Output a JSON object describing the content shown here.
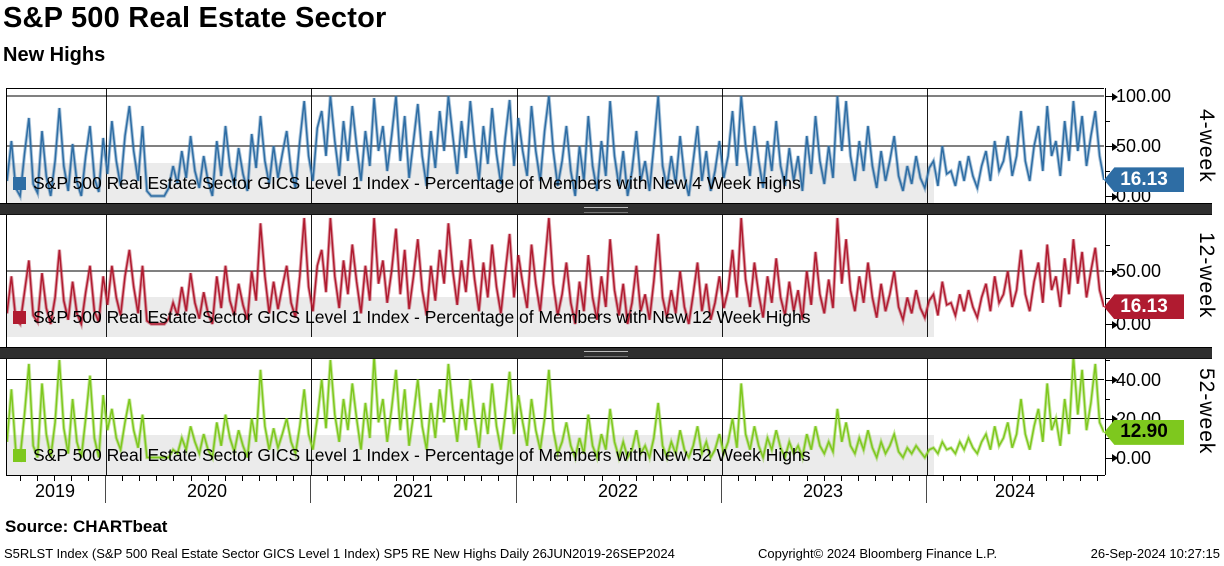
{
  "header": {
    "title": "S&P 500 Real Estate Sector",
    "subtitle": "New Highs"
  },
  "source_line": "Source: CHARTbeat",
  "footer": {
    "left": "S5RLST Index (S&P 500 Real Estate Sector GICS Level 1 Index) SP5 RE New Highs  Daily 26JUN2019-26SEP2024",
    "center": "Copyright© 2024 Bloomberg Finance L.P.",
    "right": "26-Sep-2024 10:27:15"
  },
  "x_axis": {
    "tick_labels": [
      "2019",
      "2020",
      "2021",
      "2022",
      "2023",
      "2024"
    ]
  },
  "chart_data": [
    {
      "type": "line",
      "name": "4-week",
      "color": "#2e6da4",
      "tag_text_color": "#ffffff",
      "legend": "S&P 500 Real Estate Sector GICS Level 1 Index - Percentage of Members with New 4 Week Highs",
      "last_value": "16.13",
      "ylim": [
        0,
        107
      ],
      "yticks": [
        {
          "value": 100,
          "label": "100.00"
        },
        {
          "value": 50,
          "label": "50.00"
        },
        {
          "value": 0,
          "label": "0.00"
        }
      ],
      "minor_ticks": [
        75,
        25
      ],
      "x_range": "26JUN2019-26SEP2024",
      "values": [
        15,
        55,
        8,
        0,
        42,
        78,
        12,
        3,
        65,
        20,
        0,
        35,
        88,
        30,
        5,
        52,
        14,
        0,
        40,
        70,
        18,
        4,
        58,
        22,
        75,
        35,
        10,
        60,
        90,
        45,
        15,
        70,
        5,
        0,
        0,
        0,
        0,
        8,
        30,
        12,
        45,
        18,
        60,
        25,
        8,
        40,
        15,
        0,
        55,
        20,
        70,
        30,
        10,
        48,
        22,
        5,
        62,
        28,
        80,
        35,
        12,
        50,
        18,
        42,
        65,
        25,
        8,
        55,
        95,
        40,
        15,
        68,
        85,
        40,
        100,
        55,
        20,
        75,
        35,
        90,
        50,
        15,
        65,
        30,
        98,
        45,
        70,
        25,
        60,
        100,
        35,
        80,
        18,
        55,
        92,
        40,
        10,
        65,
        28,
        85,
        45,
        100,
        60,
        22,
        75,
        38,
        95,
        50,
        15,
        70,
        32,
        88,
        42,
        12,
        58,
        96,
        30,
        78,
        45,
        20,
        90,
        45,
        15,
        65,
        100,
        45,
        10,
        35,
        70,
        25,
        0,
        50,
        15,
        80,
        30,
        5,
        55,
        20,
        95,
        40,
        10,
        45,
        0,
        25,
        65,
        15,
        35,
        5,
        50,
        100,
        30,
        8,
        40,
        12,
        60,
        20,
        0,
        35,
        70,
        15,
        45,
        5,
        25,
        55,
        18,
        40,
        85,
        30,
        100,
        50,
        20,
        70,
        35,
        8,
        55,
        25,
        75,
        30,
        10,
        48,
        15,
        40,
        5,
        60,
        22,
        80,
        35,
        12,
        50,
        18,
        100,
        45,
        95,
        40,
        15,
        55,
        25,
        70,
        30,
        8,
        45,
        15,
        35,
        60,
        20,
        5,
        30,
        12,
        40,
        18,
        8,
        28,
        35,
        10,
        50,
        22,
        25,
        10,
        35,
        15,
        40,
        20,
        8,
        30,
        45,
        15,
        55,
        25,
        35,
        60,
        20,
        40,
        85,
        35,
        15,
        50,
        70,
        25,
        90,
        40,
        55,
        20,
        75,
        35,
        95,
        45,
        80,
        30,
        60,
        85,
        40,
        16.13
      ]
    },
    {
      "type": "line",
      "name": "12-week",
      "color": "#b01b30",
      "tag_text_color": "#ffffff",
      "legend": "S&P 500 Real Estate Sector GICS Level 1 Index - Percentage of Members with New 12 Week Highs",
      "last_value": "16.13",
      "ylim": [
        0,
        105
      ],
      "yticks": [
        {
          "value": 50,
          "label": "50.00"
        },
        {
          "value": 0,
          "label": "0.00"
        }
      ],
      "minor_ticks": [
        75,
        25
      ],
      "x_range": "26JUN2019-26SEP2024",
      "values": [
        10,
        45,
        5,
        0,
        30,
        60,
        8,
        2,
        48,
        15,
        0,
        25,
        70,
        22,
        4,
        40,
        10,
        0,
        30,
        55,
        12,
        2,
        45,
        18,
        55,
        25,
        8,
        45,
        70,
        35,
        10,
        55,
        3,
        0,
        0,
        0,
        0,
        5,
        20,
        8,
        35,
        12,
        48,
        20,
        5,
        30,
        10,
        0,
        45,
        15,
        55,
        22,
        8,
        38,
        18,
        4,
        50,
        22,
        95,
        45,
        10,
        40,
        14,
        35,
        55,
        20,
        6,
        45,
        100,
        35,
        12,
        55,
        70,
        30,
        100,
        45,
        15,
        60,
        28,
        75,
        40,
        10,
        55,
        22,
        100,
        38,
        60,
        20,
        50,
        90,
        28,
        70,
        14,
        45,
        80,
        32,
        8,
        55,
        22,
        70,
        38,
        95,
        50,
        18,
        60,
        30,
        80,
        42,
        12,
        58,
        25,
        75,
        35,
        10,
        48,
        85,
        25,
        65,
        38,
        15,
        75,
        38,
        12,
        55,
        100,
        38,
        8,
        28,
        58,
        20,
        0,
        40,
        12,
        65,
        25,
        4,
        45,
        16,
        80,
        32,
        8,
        38,
        0,
        20,
        55,
        12,
        28,
        4,
        40,
        85,
        25,
        6,
        32,
        10,
        50,
        16,
        0,
        28,
        58,
        12,
        38,
        4,
        20,
        45,
        15,
        32,
        70,
        25,
        100,
        42,
        16,
        58,
        28,
        6,
        45,
        20,
        62,
        25,
        8,
        40,
        12,
        32,
        4,
        50,
        18,
        68,
        28,
        10,
        42,
        15,
        100,
        38,
        80,
        32,
        12,
        45,
        20,
        58,
        25,
        6,
        38,
        12,
        28,
        50,
        16,
        4,
        25,
        10,
        32,
        15,
        6,
        22,
        28,
        8,
        40,
        18,
        20,
        8,
        28,
        12,
        32,
        16,
        6,
        25,
        38,
        12,
        45,
        20,
        28,
        50,
        16,
        32,
        70,
        28,
        12,
        40,
        58,
        20,
        75,
        32,
        45,
        16,
        62,
        28,
        80,
        38,
        68,
        25,
        50,
        72,
        32,
        16.13
      ]
    },
    {
      "type": "line",
      "name": "52-week",
      "color": "#7ec81e",
      "tag_text_color": "#000000",
      "legend": "S&P 500 Real Estate Sector GICS Level 1 Index - Percentage of Members with New 52 Week Highs",
      "last_value": "12.90",
      "ylim": [
        0,
        57
      ],
      "yticks": [
        {
          "value": 40,
          "label": "40.00"
        },
        {
          "value": 20,
          "label": "20.00"
        },
        {
          "value": 0,
          "label": "0.00"
        }
      ],
      "minor_ticks": [
        50,
        30,
        10
      ],
      "x_range": "26JUN2019-26SEP2024",
      "values": [
        8,
        35,
        4,
        0,
        22,
        48,
        6,
        0,
        38,
        12,
        0,
        18,
        50,
        15,
        2,
        30,
        8,
        0,
        20,
        42,
        10,
        0,
        32,
        14,
        25,
        10,
        4,
        18,
        30,
        14,
        5,
        22,
        0,
        0,
        0,
        0,
        0,
        0,
        4,
        2,
        10,
        4,
        16,
        8,
        2,
        12,
        4,
        0,
        18,
        6,
        22,
        10,
        3,
        14,
        6,
        0,
        20,
        8,
        45,
        16,
        4,
        15,
        5,
        12,
        20,
        8,
        2,
        16,
        35,
        12,
        4,
        20,
        40,
        15,
        50,
        22,
        8,
        30,
        14,
        38,
        20,
        4,
        28,
        10,
        52,
        18,
        30,
        8,
        25,
        45,
        14,
        35,
        6,
        22,
        40,
        16,
        4,
        28,
        10,
        35,
        18,
        48,
        25,
        8,
        30,
        14,
        40,
        20,
        5,
        28,
        12,
        38,
        16,
        4,
        22,
        44,
        12,
        32,
        18,
        6,
        30,
        14,
        4,
        20,
        45,
        14,
        2,
        8,
        18,
        6,
        0,
        10,
        2,
        22,
        6,
        0,
        12,
        4,
        25,
        8,
        0,
        8,
        0,
        4,
        14,
        2,
        6,
        0,
        10,
        28,
        6,
        0,
        8,
        2,
        14,
        4,
        0,
        6,
        16,
        2,
        8,
        0,
        4,
        12,
        2,
        8,
        20,
        5,
        38,
        12,
        4,
        16,
        6,
        0,
        10,
        4,
        14,
        5,
        0,
        8,
        2,
        6,
        0,
        12,
        4,
        16,
        6,
        2,
        8,
        3,
        25,
        8,
        18,
        6,
        2,
        10,
        4,
        14,
        5,
        0,
        8,
        2,
        6,
        12,
        3,
        0,
        5,
        2,
        6,
        3,
        0,
        4,
        5,
        2,
        8,
        4,
        5,
        2,
        8,
        4,
        10,
        5,
        2,
        8,
        12,
        4,
        16,
        6,
        10,
        18,
        5,
        12,
        30,
        12,
        4,
        16,
        25,
        8,
        38,
        14,
        20,
        6,
        30,
        12,
        52,
        22,
        45,
        14,
        28,
        48,
        18,
        12.9
      ]
    }
  ]
}
